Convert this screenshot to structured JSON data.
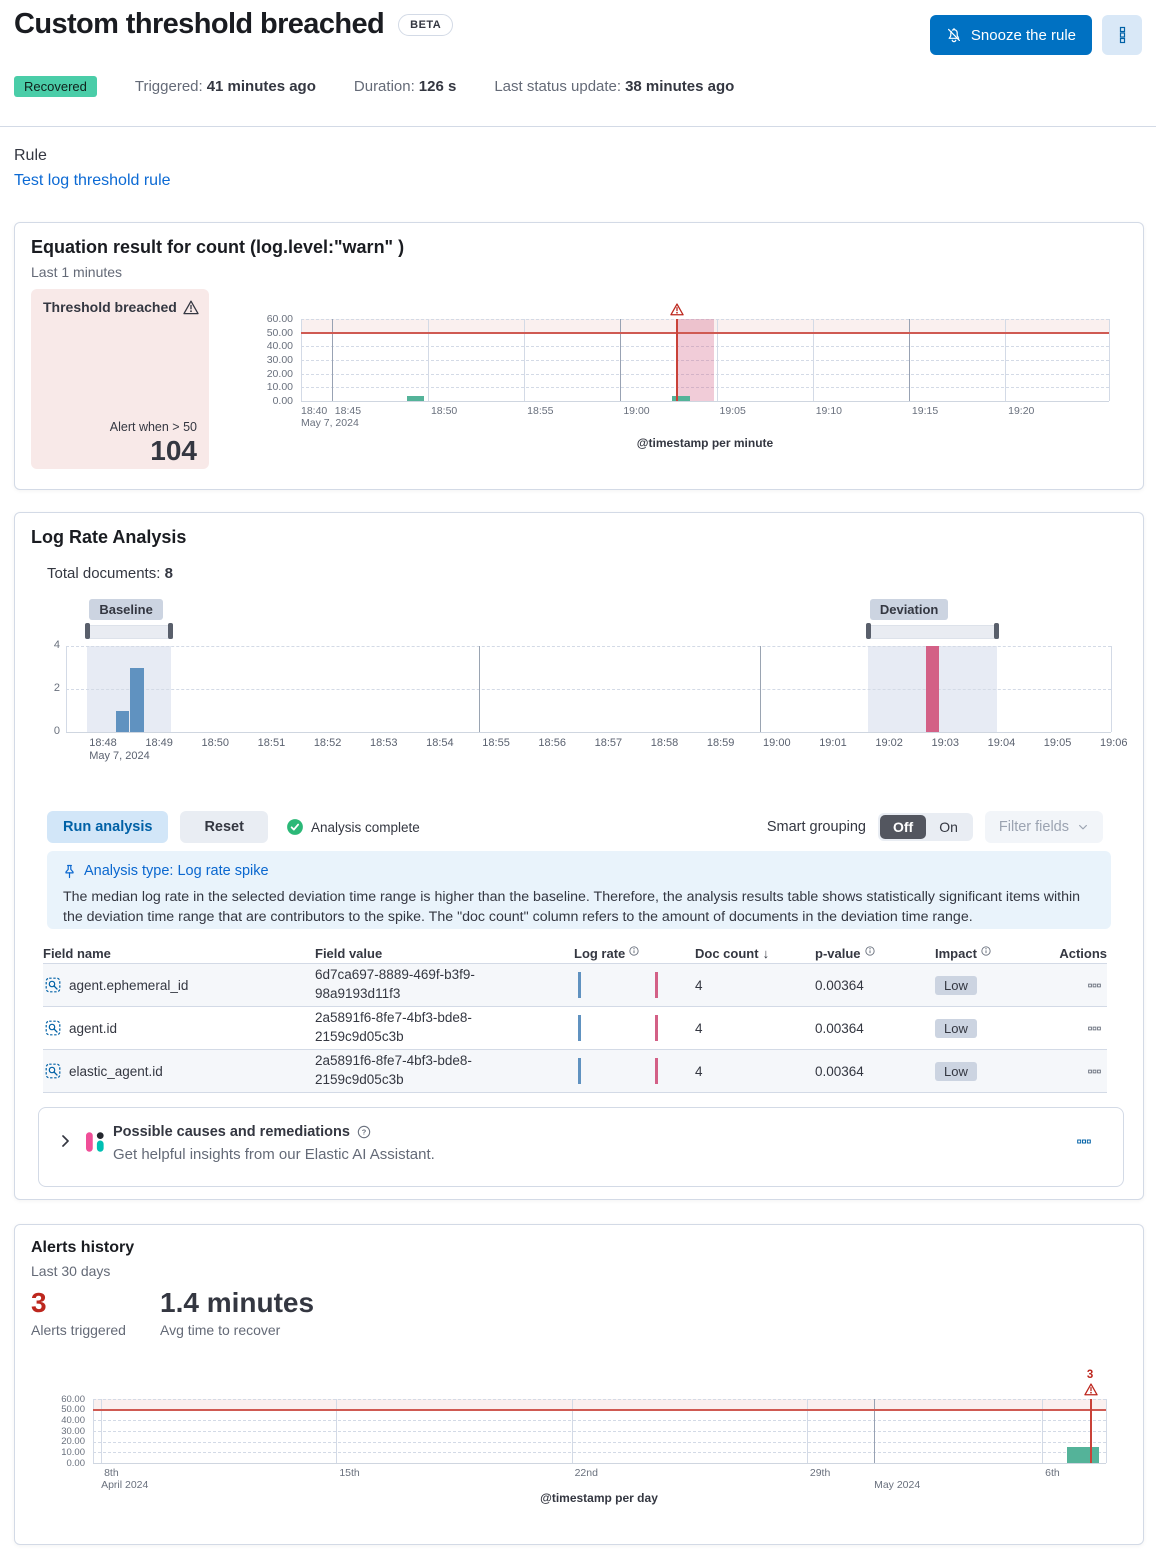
{
  "header": {
    "title": "Custom threshold breached",
    "beta_badge": "BETA",
    "snooze_button": "Snooze the rule",
    "status": {
      "badge": "Recovered",
      "triggered_label": "Triggered:",
      "triggered_value": "41 minutes ago",
      "duration_label": "Duration:",
      "duration_value": "126 s",
      "last_update_label": "Last status update:",
      "last_update_value": "38 minutes ago"
    }
  },
  "rule": {
    "label": "Rule",
    "link": "Test log threshold rule"
  },
  "equation_panel": {
    "title": "Equation result for count (log.level:\"warn\" )",
    "subtitle": "Last 1 minutes",
    "threshold_card": {
      "title": "Threshold breached",
      "alert_when": "Alert when > 50",
      "value": "104"
    },
    "axis_title": "@timestamp per minute"
  },
  "log_rate": {
    "title": "Log Rate Analysis",
    "total_documents_label": "Total documents:",
    "total_documents_value": "8",
    "run_button": "Run analysis",
    "reset_button": "Reset",
    "analysis_complete": "Analysis complete",
    "smart_grouping_label": "Smart grouping",
    "toggle_off": "Off",
    "toggle_on": "On",
    "filter_fields_label": "Filter fields",
    "callout": {
      "title": "Analysis type: Log rate spike",
      "body": "The median log rate in the selected deviation time range is higher than the baseline. Therefore, the analysis results table shows statistically significant items within the deviation time range that are contributors to the spike. The \"doc count\" column refers to the amount of documents in the deviation time range."
    },
    "table": {
      "headers": [
        "Field name",
        "Field value",
        "Log rate",
        "Doc count",
        "p-value",
        "Impact",
        "Actions"
      ],
      "rows": [
        {
          "field_name": "agent.ephemeral_id",
          "field_value": "6d7ca697-8889-469f-b3f9-98a9193d11f3",
          "doc_count": "4",
          "p_value": "0.00364",
          "impact": "Low"
        },
        {
          "field_name": "agent.id",
          "field_value": "2a5891f6-8fe7-4bf3-bde8-2159c9d05c3b",
          "doc_count": "4",
          "p_value": "0.00364",
          "impact": "Low"
        },
        {
          "field_name": "elastic_agent.id",
          "field_value": "2a5891f6-8fe7-4bf3-bde8-2159c9d05c3b",
          "doc_count": "4",
          "p_value": "0.00364",
          "impact": "Low"
        }
      ]
    },
    "ai_panel": {
      "title": "Possible causes and remediations",
      "subtitle": "Get helpful insights from our Elastic AI Assistant."
    }
  },
  "alerts_history": {
    "title": "Alerts history",
    "subtitle": "Last 30 days",
    "count": "3",
    "count_label": "Alerts triggered",
    "avg": "1.4 minutes",
    "avg_label": "Avg time to recover",
    "axis_title": "@timestamp per day"
  },
  "icons": {
    "sort_desc": "↓"
  },
  "colors": {
    "primary": "#0071c2",
    "link": "#0c6ad4",
    "success_badge": "#4acda8",
    "danger": "#bd271e",
    "bar_green": "#54b399",
    "bar_blue": "#6092c0",
    "bar_pink": "#d36086",
    "threshold_line": "#cf5a52",
    "annotation_line": "#c94238",
    "selection_fill": "#e7ebf4",
    "badge_fill": "#ccd4e1"
  },
  "chart_data": [
    {
      "id": "equation_chart",
      "type": "bar",
      "title": "Equation result for count (log.level:\"warn\" )",
      "xlabel": "@timestamp per minute",
      "ylabel": "",
      "ylim": [
        0,
        60
      ],
      "threshold": 50,
      "y_ticks": [
        "60.00",
        "50.00",
        "40.00",
        "30.00",
        "20.00",
        "10.00",
        "0.00"
      ],
      "x_domain_minutes": [
        3.4,
        45.4
      ],
      "x_ticks": [
        {
          "label": "18:40",
          "m": 3.4,
          "edge": true
        },
        {
          "label": "18:45",
          "m": 5,
          "major": true
        },
        {
          "label": "18:50",
          "m": 10
        },
        {
          "label": "18:55",
          "m": 15
        },
        {
          "label": "19:00",
          "m": 20,
          "major": true
        },
        {
          "label": "19:05",
          "m": 25
        },
        {
          "label": "19:10",
          "m": 30
        },
        {
          "label": "19:15",
          "m": 35,
          "major": true
        },
        {
          "label": "19:20",
          "m": 40
        }
      ],
      "x_date_label": "May 7, 2024",
      "bars": [
        {
          "time": "18:49",
          "m": 8.9,
          "w": 0.9,
          "value": 4
        },
        {
          "time": "19:03",
          "m": 22.7,
          "w": 0.9,
          "value": 4
        }
      ],
      "alert_band": {
        "from_m": 22.94,
        "to_m": 24.86
      },
      "annotation": {
        "m": 22.94
      }
    },
    {
      "id": "log_rate_chart",
      "type": "bar",
      "ylim": [
        0,
        4
      ],
      "y_ticks": [
        "4",
        "2",
        "0"
      ],
      "x_domain_minutes": [
        -0.36,
        18.25
      ],
      "x_ticks": [
        {
          "label": "18:48",
          "m": 0
        },
        {
          "label": "18:49",
          "m": 1
        },
        {
          "label": "18:50",
          "m": 2
        },
        {
          "label": "18:51",
          "m": 3
        },
        {
          "label": "18:52",
          "m": 4
        },
        {
          "label": "18:53",
          "m": 5
        },
        {
          "label": "18:54",
          "m": 6
        },
        {
          "label": "18:55",
          "m": 7
        },
        {
          "label": "18:56",
          "m": 8
        },
        {
          "label": "18:57",
          "m": 9
        },
        {
          "label": "18:58",
          "m": 10
        },
        {
          "label": "18:59",
          "m": 11
        },
        {
          "label": "19:00",
          "m": 12
        },
        {
          "label": "19:01",
          "m": 13
        },
        {
          "label": "19:02",
          "m": 14
        },
        {
          "label": "19:03",
          "m": 15
        },
        {
          "label": "19:04",
          "m": 16
        },
        {
          "label": "19:05",
          "m": 17
        },
        {
          "label": "19:06",
          "m": 18
        }
      ],
      "x_date_label": "May 7, 2024",
      "baseline_label": "Baseline",
      "deviation_label": "Deviation",
      "baseline": {
        "from_m": 0.02,
        "to_m": 1.51,
        "bars": [
          {
            "time": "18:48:30",
            "m": 0.53,
            "w": 0.23,
            "value": 1
          },
          {
            "time": "18:49:00",
            "m": 0.78,
            "w": 0.25,
            "value": 3
          }
        ]
      },
      "deviation": {
        "from_m": 13.92,
        "to_m": 16.22,
        "bars": [
          {
            "time": "19:03:00",
            "m": 14.95,
            "w": 0.23,
            "value": 4
          }
        ]
      },
      "major_gridlines_m": [
        7,
        12
      ]
    },
    {
      "id": "alerts_history_chart",
      "type": "bar",
      "xlabel": "@timestamp per day",
      "ylim": [
        0,
        60
      ],
      "threshold": 50,
      "y_ticks": [
        "60.00",
        "50.00",
        "40.00",
        "30.00",
        "20.00",
        "10.00",
        "0.00"
      ],
      "x_domain_days": [
        -0.24,
        29.9
      ],
      "x_ticks": [
        {
          "label": "8th",
          "d": 0,
          "sub": "April 2024"
        },
        {
          "label": "15th",
          "d": 7
        },
        {
          "label": "22nd",
          "d": 14
        },
        {
          "label": "29th",
          "d": 21
        },
        {
          "label": "",
          "d": 23,
          "sub": "May 2024",
          "major": true
        },
        {
          "label": "6th",
          "d": 28
        }
      ],
      "bars": [
        {
          "time": "May 7, 2024",
          "d": 28.75,
          "w": 0.95,
          "value": 15
        }
      ],
      "annotation": {
        "d": 29.45,
        "label": "3"
      }
    }
  ]
}
